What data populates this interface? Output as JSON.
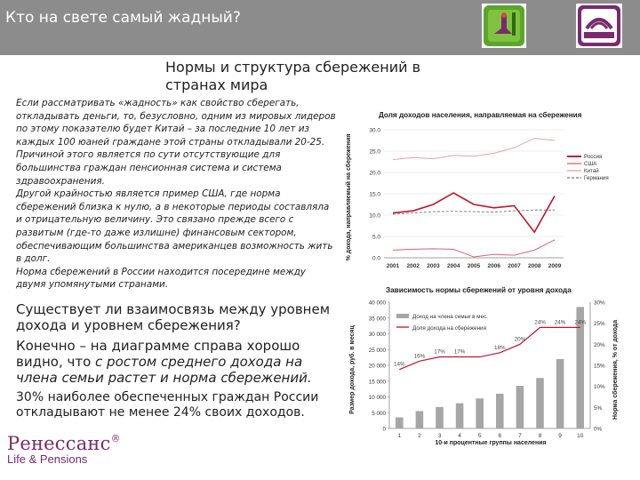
{
  "header": {
    "title": "Кто на свете самый жадный?"
  },
  "subtitle": "Нормы и структура сбережений в странах мира",
  "body_italic": [
    "Если рассматривать «жадность» как свойство сберегать, откладывать деньги, то, безусловно, одним из мировых лидеров по этому показателю будет Китай – за последние 10 лет из каждых 100 юаней граждане этой страны откладывали 20-25. Причиной этого является по сути отсутствующие для большинства граждан пенсионная система и система здравоохранения.",
    "Другой крайностью является пример США, где норма сбережений близка к нулю, а в некоторые периоды составляла и отрицательную величину. Это связано прежде всего с развитым (где-то даже излишне) финансовым сектором, обеспечивающим большинства американцев возможность жить в долг.",
    "Норма сбережений в России находится посередине между двумя упомянутыми странами."
  ],
  "question": "Существует ли взаимосвязь между уровнем дохода и уровнем сбережения?",
  "answer_prefix": "Конечно – на диаграмме справа хорошо видно, что ",
  "answer_emphasis": "с ростом среднего дохода на члена семьи растет и норма сбережений.",
  "closing": "30% наиболее обеспеченных граждан России откладывают не менее 24% своих доходов.",
  "brand": {
    "name": "Ренессанс",
    "registered": "®",
    "tagline": "Life & Pensions"
  },
  "colors": {
    "header_bg": "#8c8c8c",
    "brand": "#7a2a6e",
    "russia": "#c0152c",
    "usa": "#e06070",
    "china": "#e8a0a8",
    "germany": "#777777",
    "bars": "#a6a6a6"
  },
  "chart_data": [
    {
      "type": "line",
      "title": "Доля доходов населения, направляемая на сбережения",
      "ylabel": "% дохода, направляемый на сбережения",
      "x": [
        "2001",
        "2002",
        "2003",
        "2004",
        "2005",
        "2006",
        "2007",
        "2008",
        "2009"
      ],
      "ylim": [
        0,
        30
      ],
      "yticks": [
        "0.0",
        "5.0",
        "10.0",
        "15.0",
        "20.0",
        "25.0",
        "30.0"
      ],
      "legend_position": "right",
      "series": [
        {
          "name": "Россия",
          "values": [
            10.5,
            11,
            12.5,
            15.2,
            12.5,
            11.7,
            12.2,
            6.0,
            14.5
          ]
        },
        {
          "name": "США",
          "values": [
            1.8,
            2.0,
            2.1,
            2.0,
            0.2,
            0.8,
            0.6,
            1.8,
            4.2
          ]
        },
        {
          "name": "Китай",
          "values": [
            23.0,
            23.5,
            23.2,
            24.0,
            23.8,
            24.5,
            25.8,
            28.0,
            27.5
          ]
        },
        {
          "name": "Германия",
          "values": [
            10.2,
            10.5,
            10.8,
            10.9,
            10.8,
            10.7,
            11.0,
            11.2,
            11.2
          ]
        }
      ]
    },
    {
      "type": "bar",
      "title": "Зависимость нормы сбережений от уровня дохода",
      "xlabel": "10-и процентные группы населения",
      "ylabel": "Размер дохода, руб. в месяц",
      "y2label": "Норма сбережения, % от дохода",
      "categories": [
        "1",
        "2",
        "3",
        "4",
        "5",
        "6",
        "7",
        "8",
        "9",
        "10"
      ],
      "ylim": [
        0,
        40000
      ],
      "yticks": [
        "0",
        "5 000",
        "10 000",
        "15 000",
        "20 000",
        "25 000",
        "30 000",
        "35 000",
        "40 000"
      ],
      "y2lim": [
        0,
        30
      ],
      "y2ticks": [
        "0%",
        "5%",
        "10%",
        "15%",
        "20%",
        "25%",
        "30%"
      ],
      "series": [
        {
          "name": "Доход на члена семьи в мес.",
          "values": [
            3500,
            5500,
            6800,
            8000,
            9500,
            11000,
            13500,
            16000,
            22000,
            38500
          ]
        },
        {
          "name": "Доля дохода на сбережения",
          "values": [
            14,
            16,
            17,
            17,
            17,
            18,
            20,
            24,
            24,
            24
          ]
        }
      ],
      "labels_y2": [
        "14%",
        "16%",
        "17%",
        "17%",
        "",
        "18%",
        "20%",
        "24%",
        "24%",
        "24%"
      ]
    }
  ]
}
